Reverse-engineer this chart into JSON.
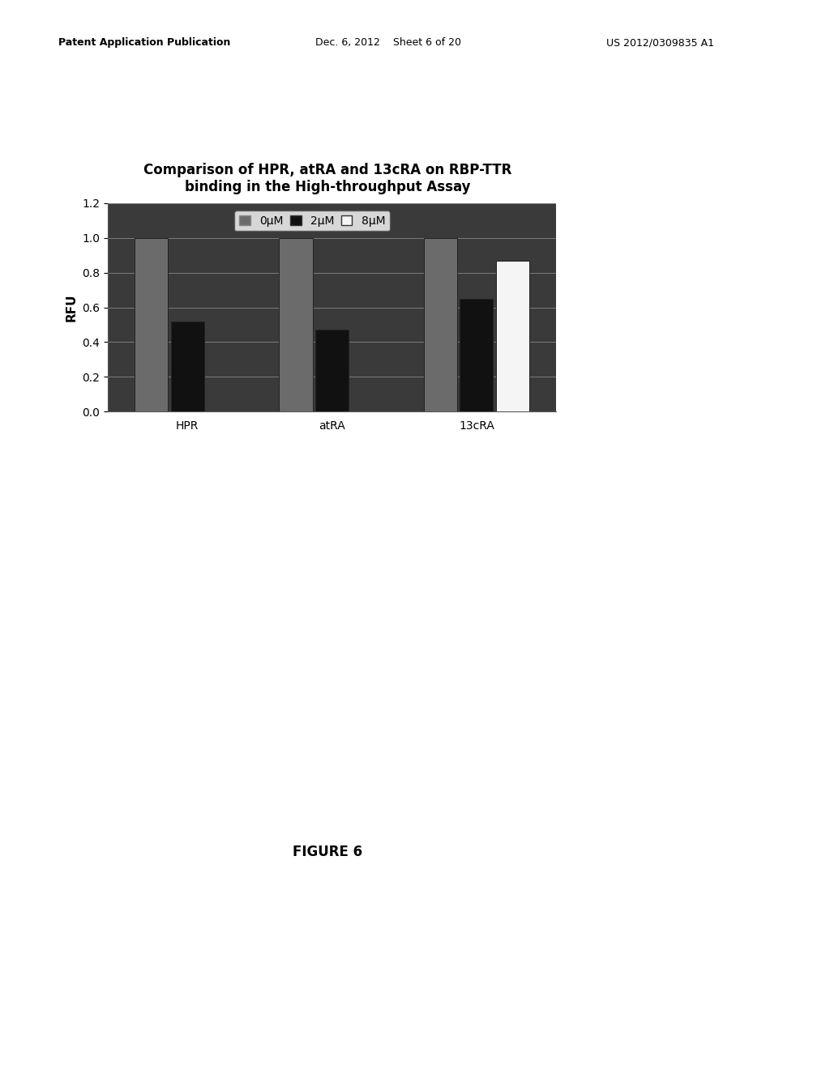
{
  "title_line1": "Comparison of HPR, atRA and 13cRA on RBP-TTR",
  "title_line2": "binding in the High-throughput Assay",
  "ylabel": "RFU",
  "xlabel": "",
  "groups": [
    "HPR",
    "atRA",
    "13cRA"
  ],
  "series_labels": [
    "0μM",
    "2μM",
    "8μM"
  ],
  "values": {
    "HPR": [
      1.0,
      0.52,
      0.0
    ],
    "atRA": [
      1.0,
      0.47,
      0.0
    ],
    "13cRA": [
      1.0,
      0.65,
      0.87
    ]
  },
  "ylim": [
    0,
    1.2
  ],
  "yticks": [
    0,
    0.2,
    0.4,
    0.6,
    0.8,
    1.0,
    1.2
  ],
  "bar_colors_0um": "#6b6b6b",
  "bar_colors_2um": "#111111",
  "bar_colors_8um": "#f5f5f5",
  "bar_edge_color": "#222222",
  "plot_bg_color": "#3a3a3a",
  "figure_bg_color": "#ffffff",
  "title_fontsize": 12,
  "axis_label_fontsize": 11,
  "tick_fontsize": 10,
  "legend_fontsize": 10,
  "figure_caption": "FIGURE 6",
  "caption_fontsize": 12,
  "header_left": "Patent Application Publication",
  "header_mid": "Dec. 6, 2012    Sheet 6 of 20",
  "header_right": "US 2012/0309835 A1"
}
